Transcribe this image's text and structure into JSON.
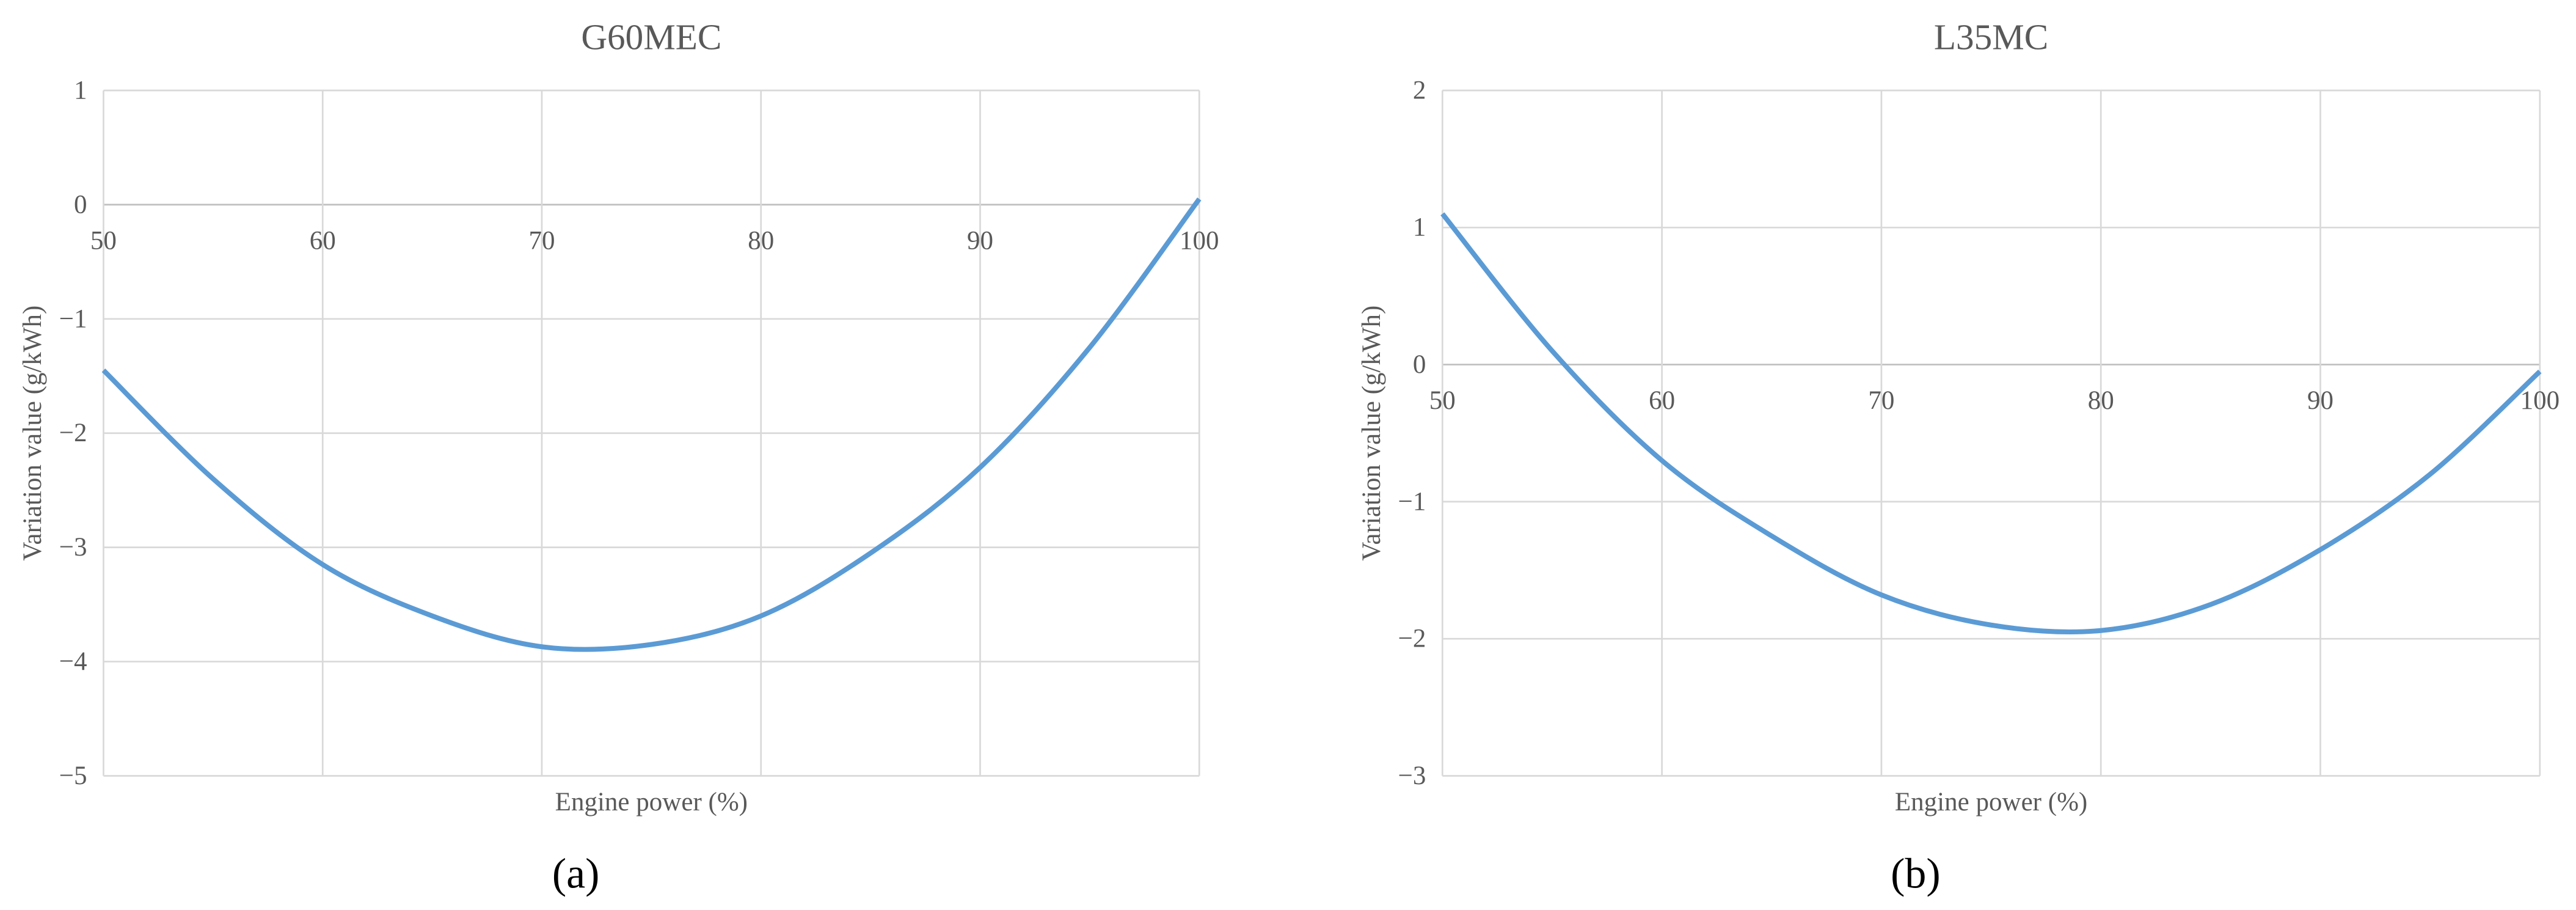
{
  "chart_data": [
    {
      "type": "line",
      "title": "G60MEC",
      "x_label": "Engine power (%)",
      "y_label": "Variation value (g/kWh)",
      "panel_label": "(a)",
      "x": [
        50,
        55,
        60,
        65,
        70,
        75,
        80,
        85,
        90,
        95,
        100
      ],
      "series": [
        {
          "color": "#5b9bd5",
          "values": [
            -1.45,
            -2.4,
            -3.15,
            -3.6,
            -3.87,
            -3.85,
            -3.6,
            -3.05,
            -2.3,
            -1.25,
            0.05
          ]
        }
      ],
      "xlim": [
        50,
        100
      ],
      "xticks": [
        50,
        60,
        70,
        80,
        90,
        100
      ],
      "ylim": [
        -5,
        1
      ],
      "yticks": [
        {
          "value": -5,
          "label": "−5"
        },
        {
          "value": -4,
          "label": "−4"
        },
        {
          "value": -3,
          "label": "−3"
        },
        {
          "value": -2,
          "label": "−2"
        },
        {
          "value": -1,
          "label": "−1"
        },
        0,
        1
      ],
      "grid": true
    },
    {
      "type": "line",
      "title": "L35MC",
      "x_label": "Engine power (%)",
      "y_label": "Variation value (g/kWh)",
      "panel_label": "(b)",
      "x": [
        50,
        55,
        60,
        65,
        70,
        75,
        80,
        85,
        90,
        95,
        100
      ],
      "series": [
        {
          "color": "#5b9bd5",
          "values": [
            1.1,
            0.1,
            -0.7,
            -1.25,
            -1.68,
            -1.9,
            -1.94,
            -1.75,
            -1.35,
            -0.8,
            -0.05
          ]
        }
      ],
      "xlim": [
        50,
        100
      ],
      "xticks": [
        50,
        60,
        70,
        80,
        90,
        100
      ],
      "ylim": [
        -3,
        2
      ],
      "yticks": [
        {
          "value": -3,
          "label": "−3"
        },
        {
          "value": -2,
          "label": "−2"
        },
        {
          "value": -1,
          "label": "−1"
        },
        0,
        1,
        2
      ],
      "grid": true
    }
  ]
}
